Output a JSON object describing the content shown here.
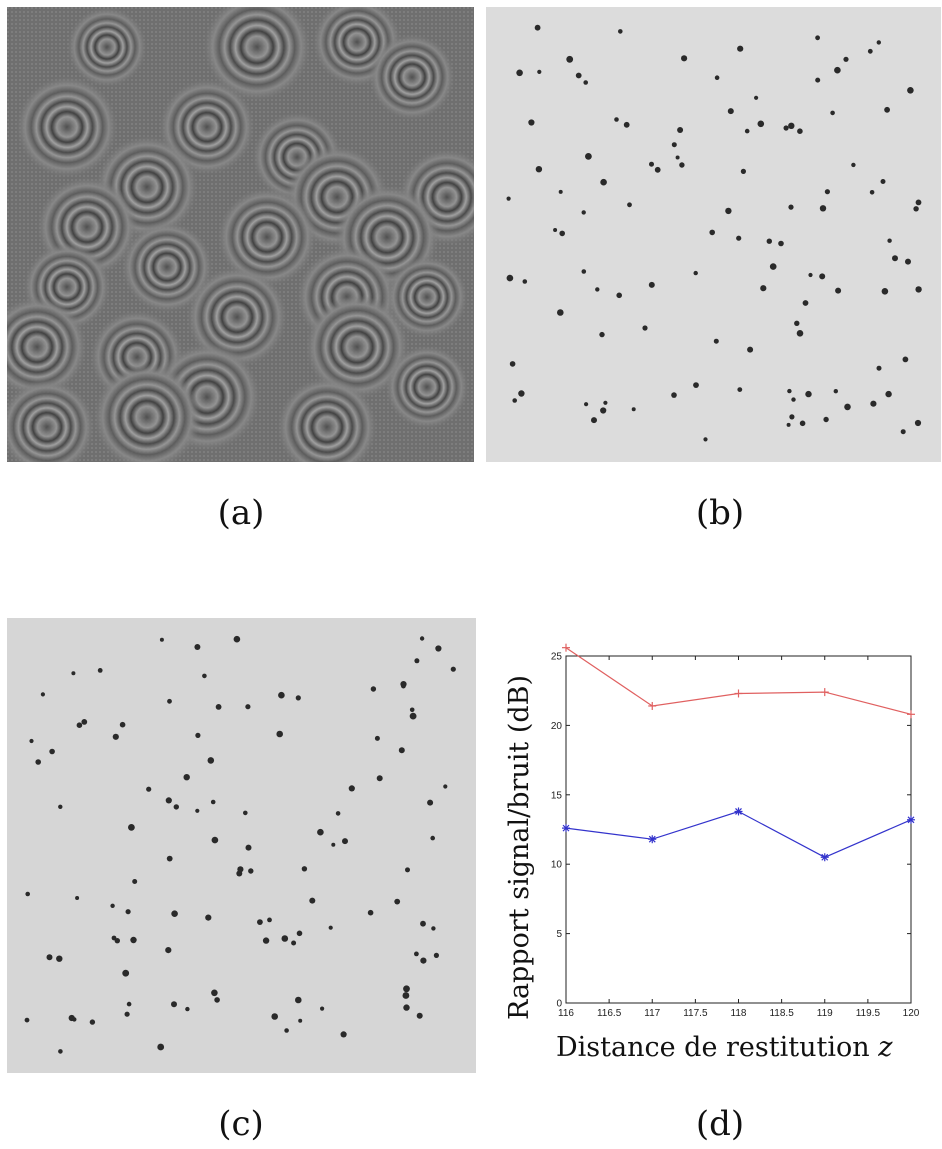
{
  "captions": {
    "a": "(a)",
    "b": "(b)",
    "c": "(c)",
    "d": "(d)"
  },
  "chart_data": {
    "type": "line",
    "xlabel": "Distance de restitution",
    "xlabel_var": "z",
    "ylabel": "Rapport signal/bruit (dB)",
    "xlim": [
      116,
      120
    ],
    "ylim": [
      0,
      25
    ],
    "x": [
      116,
      117,
      118,
      119,
      120
    ],
    "x_ticks": [
      "116",
      "116.5",
      "117",
      "117.5",
      "118",
      "118.5",
      "119",
      "119.5",
      "120"
    ],
    "y_ticks": [
      "0",
      "5",
      "10",
      "15",
      "20",
      "25"
    ],
    "grid": false,
    "series": [
      {
        "color": "#e06060",
        "marker": "plus",
        "values": [
          25.6,
          21.4,
          22.3,
          22.4,
          20.8
        ]
      },
      {
        "color": "#3333cc",
        "marker": "star",
        "values": [
          12.6,
          11.8,
          13.8,
          10.5,
          13.2
        ]
      }
    ]
  }
}
